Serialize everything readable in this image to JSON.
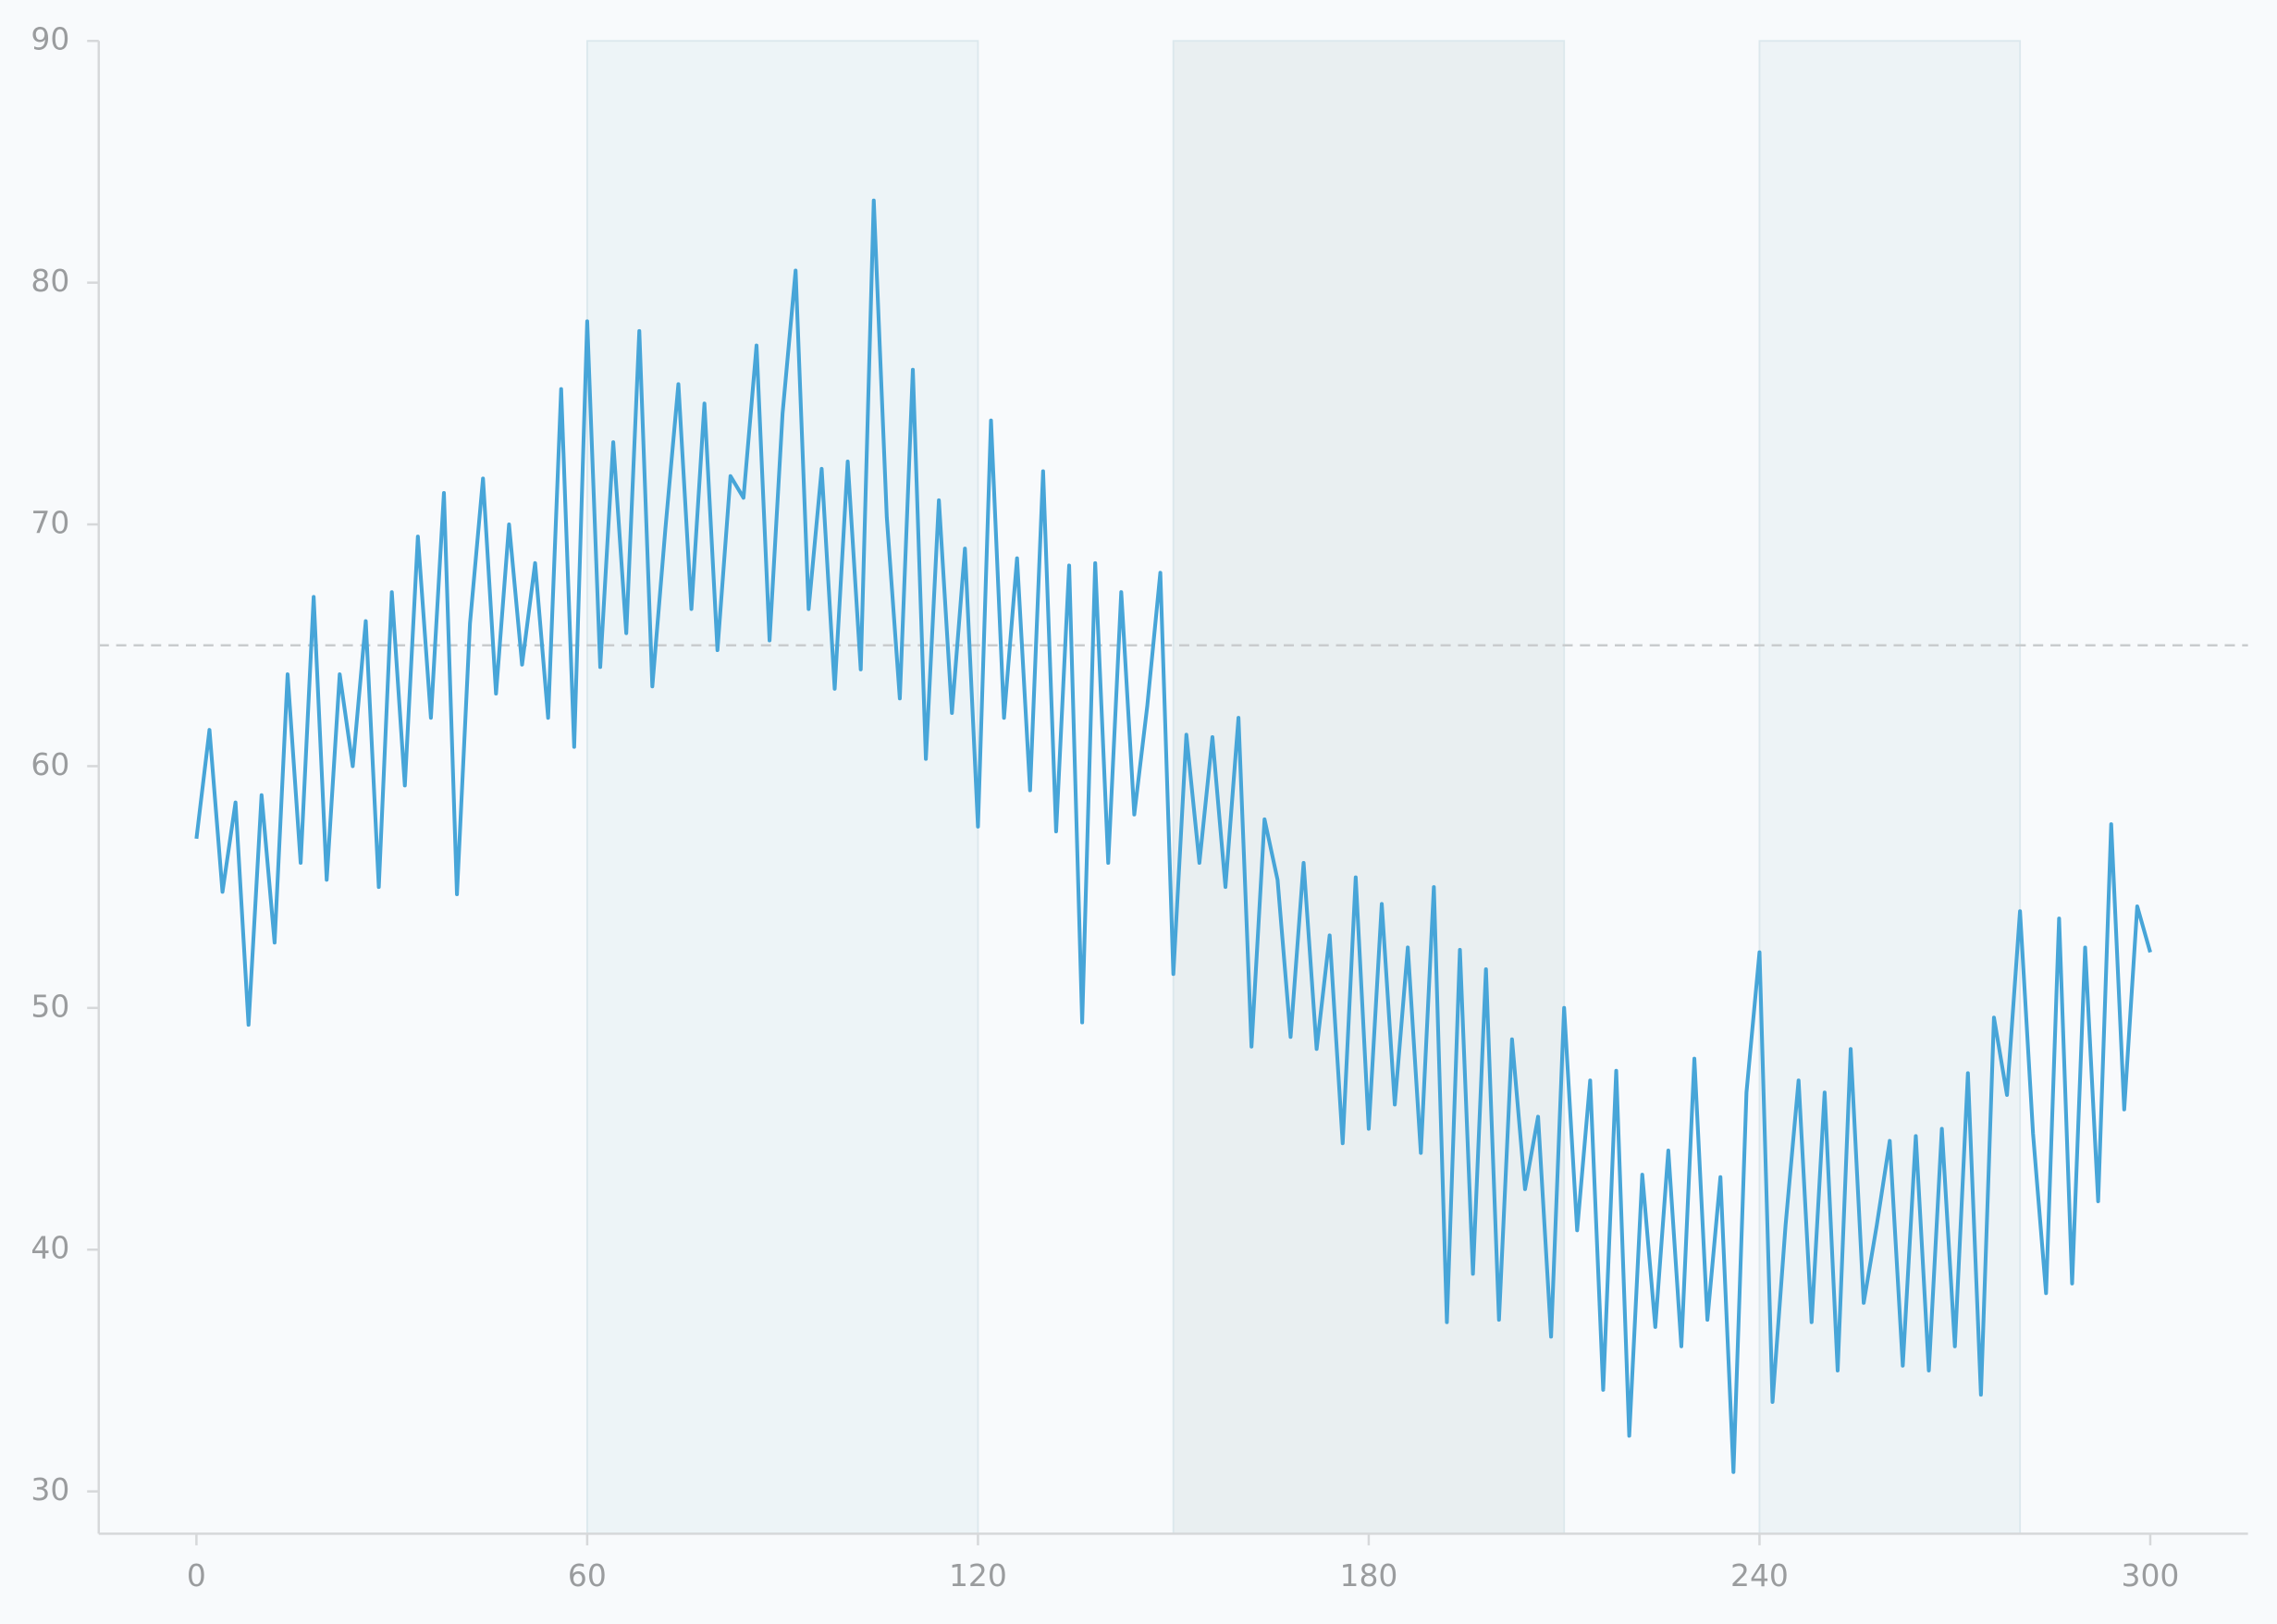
{
  "chart_data": {
    "type": "line",
    "x": [
      0,
      2,
      4,
      6,
      8,
      10,
      12,
      14,
      16,
      18,
      20,
      22,
      24,
      26,
      28,
      30,
      32,
      34,
      36,
      38,
      40,
      42,
      44,
      46,
      48,
      50,
      52,
      54,
      56,
      58,
      60,
      62,
      64,
      66,
      68,
      70,
      72,
      74,
      76,
      78,
      80,
      82,
      84,
      86,
      88,
      90,
      92,
      94,
      96,
      98,
      100,
      102,
      104,
      106,
      108,
      110,
      112,
      114,
      116,
      118,
      120,
      122,
      124,
      126,
      128,
      130,
      132,
      134,
      136,
      138,
      140,
      142,
      144,
      146,
      148,
      150,
      152,
      154,
      156,
      158,
      160,
      162,
      164,
      166,
      168,
      170,
      172,
      174,
      176,
      178,
      180,
      182,
      184,
      186,
      188,
      190,
      192,
      194,
      196,
      198,
      200,
      202,
      204,
      206,
      208,
      210,
      212,
      214,
      216,
      218,
      220,
      222,
      224,
      226,
      228,
      230,
      232,
      234,
      236,
      238,
      240,
      242,
      244,
      246,
      248,
      250,
      252,
      254,
      256,
      258,
      260,
      262,
      264,
      266,
      268,
      270,
      272,
      274,
      276,
      278,
      280,
      282,
      284,
      286,
      288,
      290,
      292,
      294,
      296,
      298,
      300
    ],
    "series": [
      {
        "color": "#47a5d8",
        "values": [
          57,
          61.5,
          54.8,
          58.5,
          49.3,
          58.8,
          52.7,
          63.8,
          56,
          67,
          55.3,
          63.8,
          60,
          66,
          55,
          67.2,
          59.2,
          69.5,
          62,
          71.3,
          54.7,
          65.9,
          71.9,
          63,
          70,
          64.2,
          68.4,
          62,
          75.6,
          60.8,
          78.4,
          64.1,
          73.4,
          65.5,
          78,
          63.3,
          69.8,
          75.8,
          66.5,
          75,
          64.8,
          72,
          71.1,
          77.4,
          65.2,
          74.6,
          80.5,
          66.5,
          72.3,
          63.2,
          72.6,
          64,
          83.4,
          70.3,
          62.8,
          76.4,
          60.3,
          71,
          62.2,
          69,
          57.5,
          74.3,
          62,
          68.6,
          59,
          72.2,
          57.3,
          68.3,
          49.4,
          68.4,
          56,
          67.2,
          58,
          62.5,
          68,
          51.4,
          61.3,
          56,
          61.2,
          55,
          62,
          48.4,
          57.8,
          55.3,
          48.8,
          56,
          48.3,
          53,
          44.4,
          55.4,
          45,
          54.3,
          46,
          52.5,
          44,
          55,
          37,
          52.4,
          39,
          51.6,
          37.1,
          48.7,
          42.5,
          45.5,
          36.4,
          50,
          40.8,
          47,
          34.2,
          47.4,
          32.3,
          43.1,
          36.8,
          44.1,
          36,
          47.9,
          37.1,
          43,
          30.8,
          46.5,
          52.3,
          33.7,
          41,
          47,
          37,
          46.5,
          35,
          48.3,
          37.8,
          41,
          44.5,
          35.2,
          44.7,
          35,
          45,
          36,
          47.3,
          34,
          49.6,
          46.4,
          54,
          44.8,
          38.2,
          53.7,
          38.6,
          52.5,
          42,
          57.6,
          45.8,
          54.2,
          52.3
        ]
      }
    ],
    "bands": [
      {
        "x": [
          60,
          120
        ],
        "color": "#edf4f7"
      },
      {
        "x": [
          150,
          210
        ],
        "color": "#e9eff1"
      },
      {
        "x": [
          240,
          280
        ],
        "color": "#edf3f6"
      }
    ],
    "hline": {
      "y": 65,
      "color": "#c9ccce"
    },
    "xlim": [
      -15,
      315
    ],
    "ylim": [
      28.25,
      90
    ],
    "xticks": [
      0,
      60,
      120,
      180,
      240,
      300
    ],
    "yticks": [
      30,
      40,
      50,
      60,
      70,
      80,
      90
    ]
  }
}
